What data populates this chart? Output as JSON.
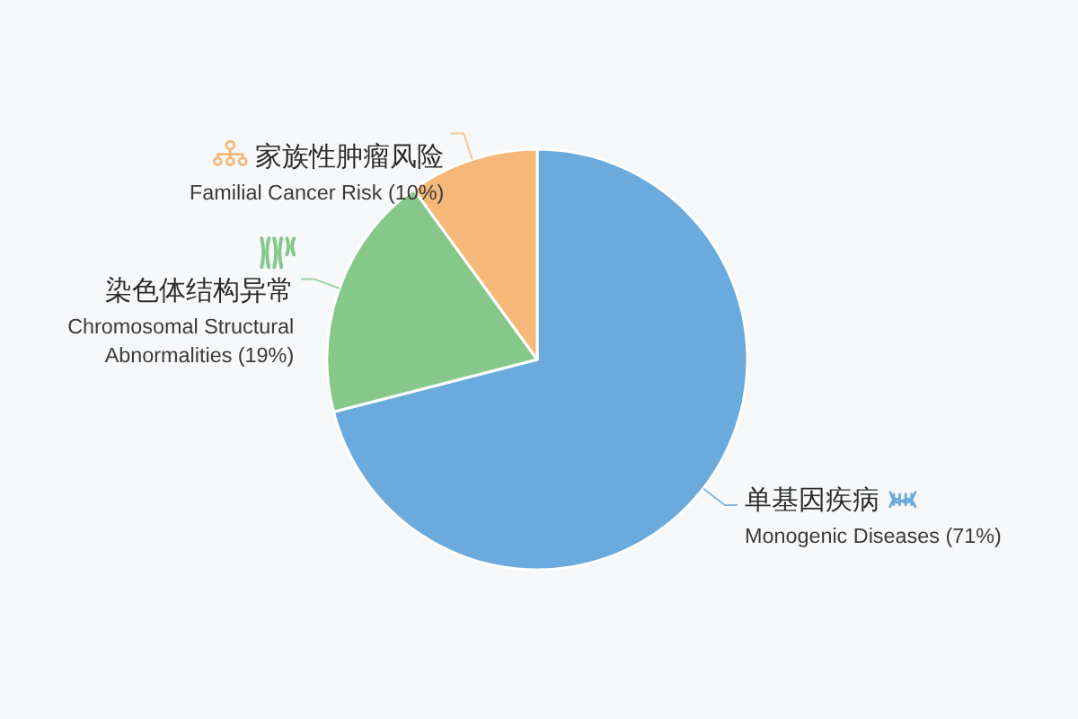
{
  "chart_data": {
    "type": "pie",
    "categories": [
      "单基因疾病\nMonogenic Diseases (71%)",
      "染色体结构异常\nChromosomal Structural\nAbnormalities (19%)",
      "家族性肿瘤风险\nFamilial Cancer Risk (10%)"
    ],
    "values": [
      71,
      19,
      10
    ],
    "colors": [
      "#6aaadd",
      "#86c88a",
      "#f5b878"
    ]
  }
}
